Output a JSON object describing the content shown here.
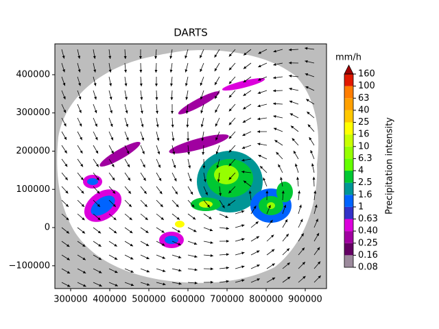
{
  "chart_data": {
    "type": "map",
    "title": "DARTS",
    "xlim": [
      259600,
      954400
    ],
    "ylim": [
      -159600,
      480700
    ],
    "xticks": [
      300000,
      400000,
      500000,
      600000,
      700000,
      800000,
      900000
    ],
    "yticks": [
      {
        "value": -100000,
        "label": "−100000"
      },
      0,
      100000,
      200000,
      300000,
      400000
    ],
    "colorbar": {
      "unit": "mm/h",
      "label": "Precipitation intensity",
      "levels": [
        0.08,
        0.16,
        0.25,
        {
          "value": 0.4,
          "label": "0.40"
        },
        0.63,
        1,
        1.6,
        2.5,
        4,
        6.3,
        10,
        16,
        25,
        40,
        63,
        100,
        160
      ],
      "colors": [
        "#9c8a9c",
        "#640064",
        "#a000a0",
        "#dc00dc",
        "#3232c8",
        "#0064ff",
        "#009696",
        "#00c832",
        "#64ff00",
        "#96ff00",
        "#c8ff00",
        "#ffff00",
        "#ffc800",
        "#ffa000",
        "#ff7d00",
        "#e11900"
      ],
      "extend_color": "#a00000"
    }
  }
}
